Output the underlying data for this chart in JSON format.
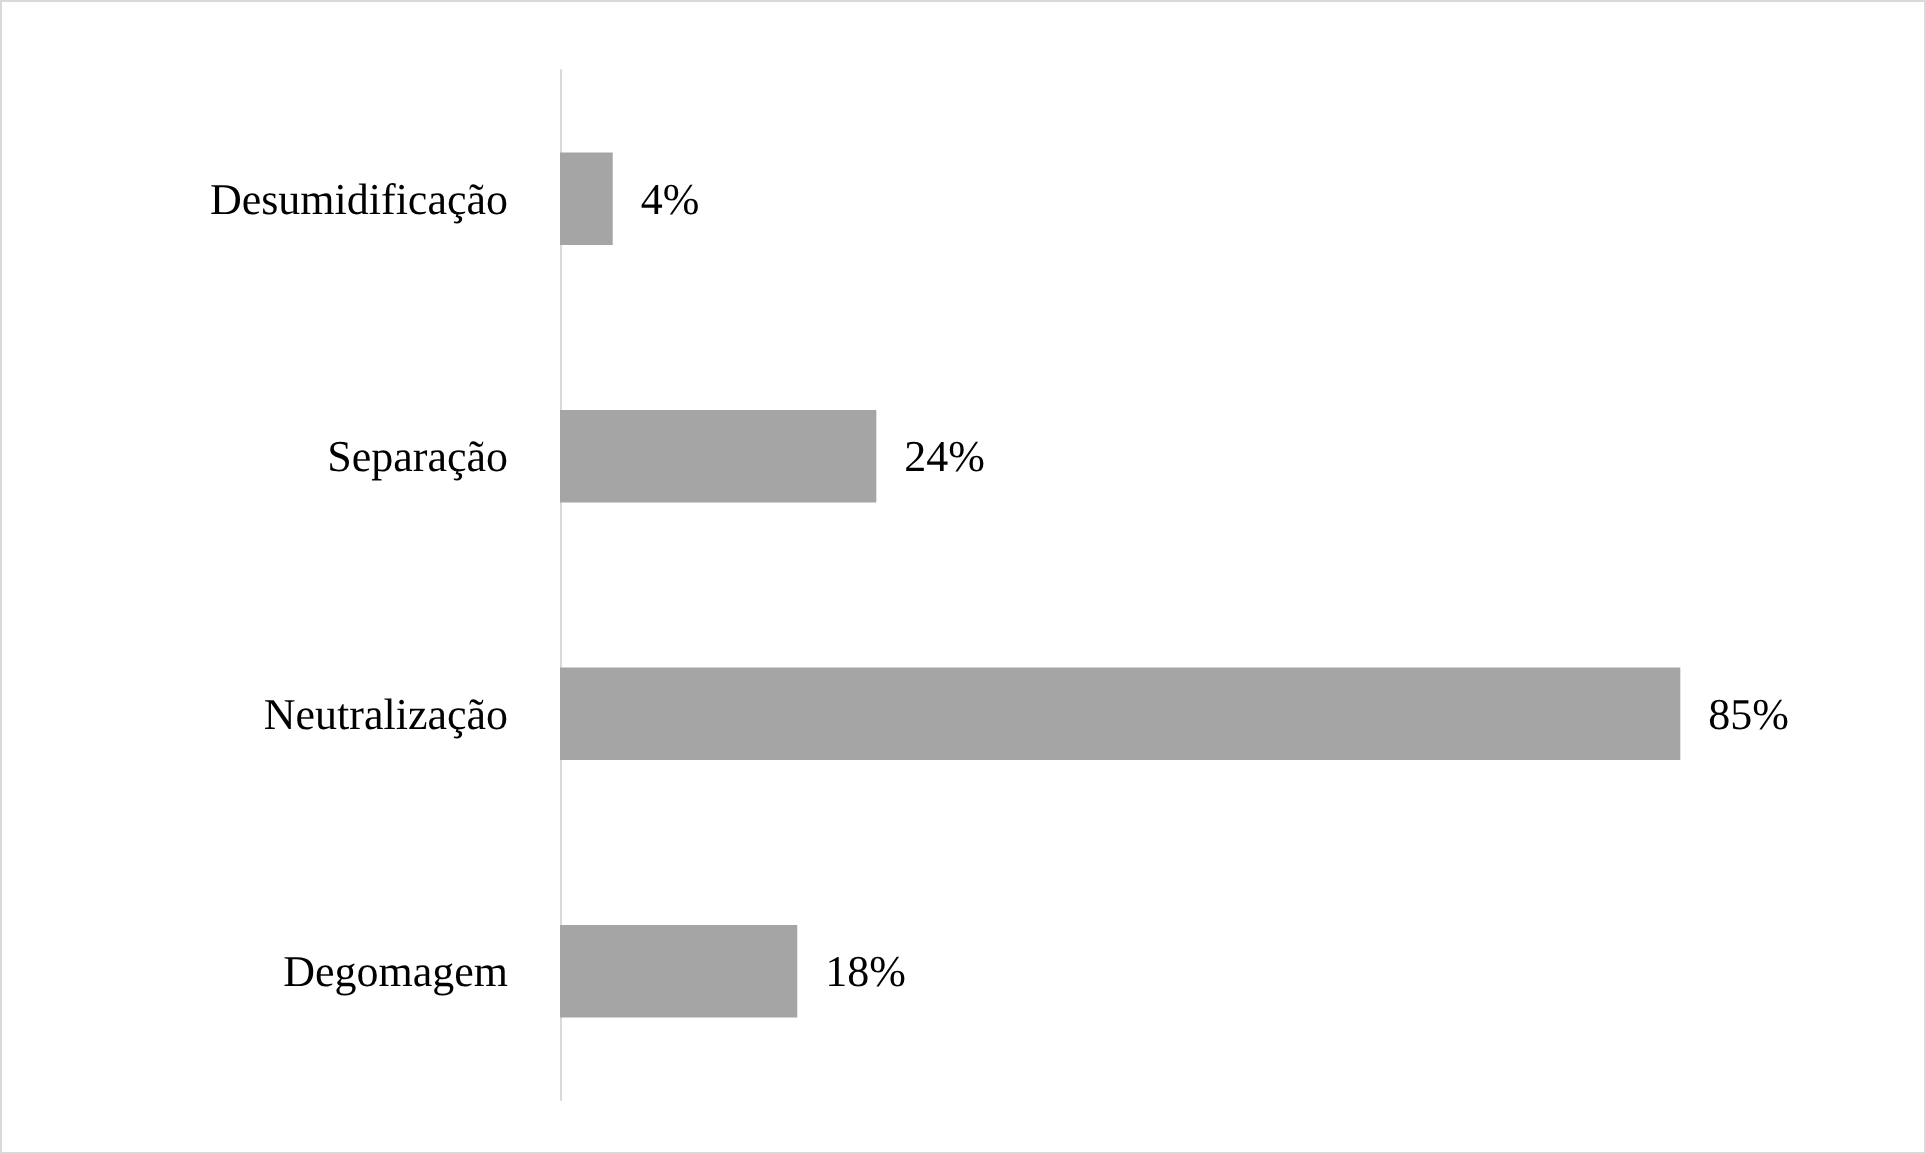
{
  "chart_data": {
    "type": "bar",
    "orientation": "horizontal",
    "categories": [
      "Desumidificação",
      "Separação",
      "Neutralização",
      "Degomagem"
    ],
    "values": [
      4,
      24,
      85,
      18
    ],
    "color": "#a5a5a5",
    "value_labels": [
      "4%",
      "24%",
      "85%",
      "18%"
    ]
  }
}
